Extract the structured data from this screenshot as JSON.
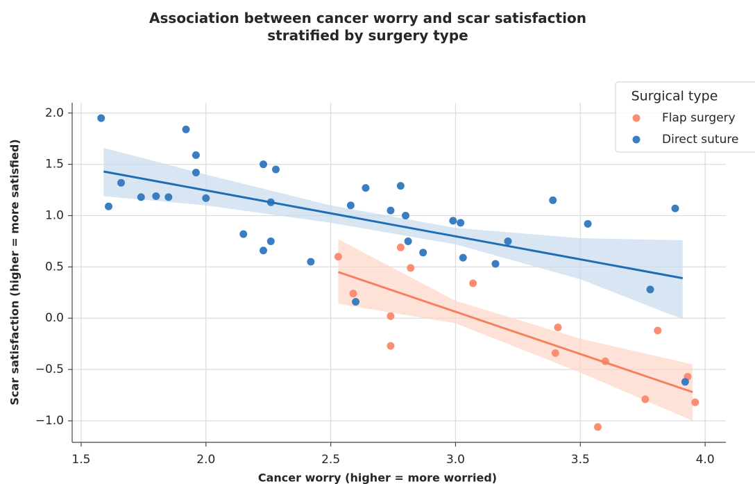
{
  "chart_data": {
    "type": "scatter",
    "title": "Association between cancer worry and scar satisfaction\nstratified by surgery type",
    "x_label": "Cancer worry (higher = more worried)",
    "y_label": "Scar satisfaction (higher = more satisfied)",
    "legend_title": "Surgical type",
    "legend": "upper right",
    "grid": true,
    "xlim": [
      1.464,
      4.083
    ],
    "ylim": [
      -1.21,
      2.1
    ],
    "xticks": [
      {
        "value": 1.5,
        "label": "1.5"
      },
      {
        "value": 2.0,
        "label": "2.0"
      },
      {
        "value": 2.5,
        "label": "2.5"
      },
      {
        "value": 3.0,
        "label": "3.0"
      },
      {
        "value": 3.5,
        "label": "3.5"
      },
      {
        "value": 4.0,
        "label": "4.0"
      }
    ],
    "yticks": [
      {
        "value": -1.0,
        "label": "−1.0"
      },
      {
        "value": -0.5,
        "label": "−0.5"
      },
      {
        "value": 0.0,
        "label": "0.0"
      },
      {
        "value": 0.5,
        "label": "0.5"
      },
      {
        "value": 1.0,
        "label": "1.0"
      },
      {
        "value": 1.5,
        "label": "1.5"
      },
      {
        "value": 2.0,
        "label": "2.0"
      }
    ],
    "series": [
      {
        "name": "Flap surgery",
        "color": "#fa8e72",
        "line_color": "#f4805e",
        "band_color": "#fdd5c8",
        "x": [
          2.53,
          2.59,
          2.74,
          2.74,
          2.78,
          2.82,
          3.07,
          3.41,
          3.4,
          3.6,
          3.57,
          3.76,
          3.81,
          3.93,
          3.96
        ],
        "y": [
          0.6,
          0.24,
          0.02,
          -0.27,
          0.69,
          0.49,
          0.34,
          -0.09,
          -0.34,
          -0.42,
          -1.06,
          -0.79,
          -0.12,
          -0.57,
          -0.82
        ],
        "fit_x": [
          2.53,
          3.95
        ],
        "fit_y": [
          0.45,
          -0.72
        ],
        "band_x": [
          2.53,
          3.0,
          3.5,
          3.95
        ],
        "band_upper": [
          0.77,
          0.17,
          -0.2,
          -0.45
        ],
        "band_lower": [
          0.14,
          -0.05,
          -0.53,
          -1.0
        ]
      },
      {
        "name": "Direct suture",
        "color": "#3a7dc0",
        "line_color": "#1f6db5",
        "band_color": "#c6dcec",
        "x": [
          1.58,
          1.61,
          1.66,
          1.74,
          1.8,
          1.85,
          1.92,
          1.96,
          1.96,
          2.0,
          2.15,
          2.23,
          2.23,
          2.26,
          2.26,
          2.28,
          2.42,
          2.58,
          2.6,
          2.64,
          2.74,
          2.78,
          2.8,
          2.81,
          2.87,
          2.99,
          3.02,
          3.03,
          3.16,
          3.21,
          3.39,
          3.53,
          3.78,
          3.88,
          3.92
        ],
        "y": [
          1.95,
          1.09,
          1.32,
          1.18,
          1.19,
          1.18,
          1.84,
          1.59,
          1.42,
          1.17,
          0.82,
          1.5,
          0.66,
          1.13,
          0.75,
          1.45,
          0.55,
          1.1,
          0.16,
          1.27,
          1.05,
          1.29,
          1.0,
          0.75,
          0.64,
          0.95,
          0.93,
          0.59,
          0.53,
          0.75,
          1.15,
          0.92,
          0.28,
          1.07,
          -0.62
        ],
        "fit_x": [
          1.59,
          3.91
        ],
        "fit_y": [
          1.43,
          0.39
        ],
        "band_x": [
          1.59,
          2.0,
          2.5,
          3.0,
          3.5,
          3.91
        ],
        "band_upper": [
          1.66,
          1.4,
          1.1,
          0.88,
          0.78,
          0.76
        ],
        "band_lower": [
          1.19,
          1.1,
          0.93,
          0.72,
          0.38,
          -0.01
        ]
      }
    ]
  }
}
